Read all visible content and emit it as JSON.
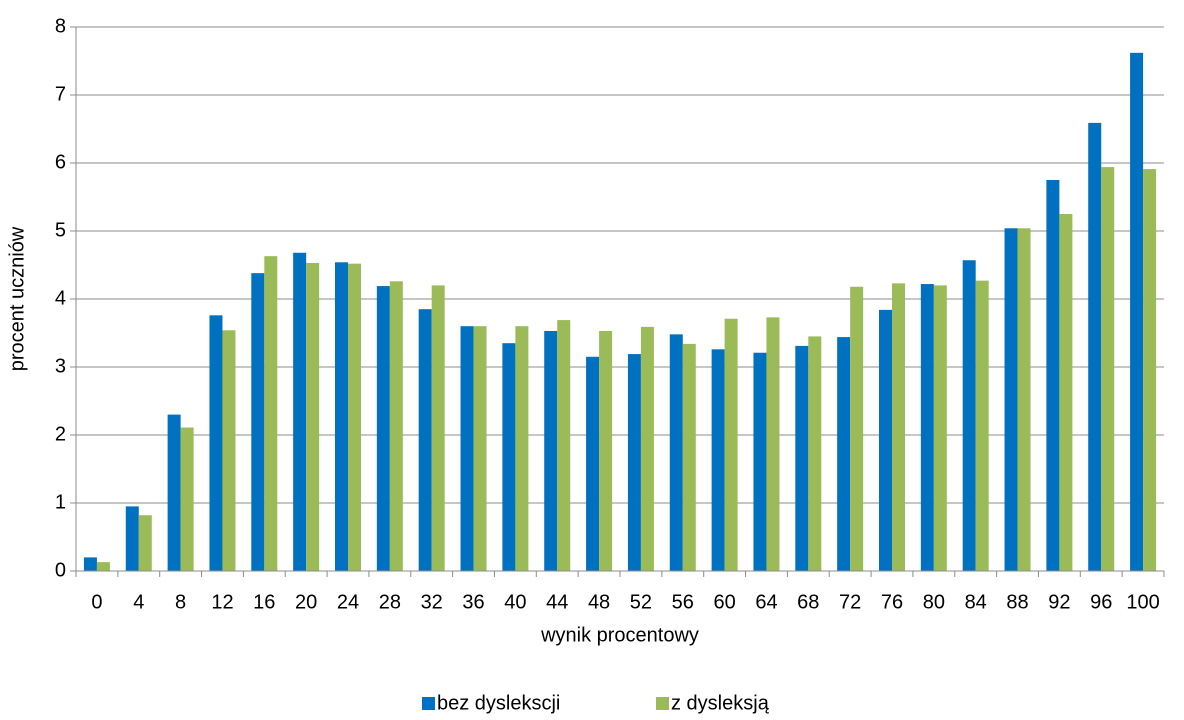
{
  "chart_data": {
    "type": "bar",
    "x_label": "wynik procentowy",
    "y_label": "procent uczniów",
    "categories": [
      "0",
      "4",
      "8",
      "12",
      "16",
      "20",
      "24",
      "28",
      "32",
      "36",
      "40",
      "44",
      "48",
      "52",
      "56",
      "60",
      "64",
      "68",
      "72",
      "76",
      "80",
      "84",
      "88",
      "92",
      "96",
      "100"
    ],
    "series": [
      {
        "name": "bez dyslekscji",
        "color": "#0070c0",
        "values": [
          0.2,
          0.95,
          2.3,
          3.76,
          4.38,
          4.68,
          4.54,
          4.19,
          3.85,
          3.6,
          3.35,
          3.53,
          3.15,
          3.19,
          3.48,
          3.26,
          3.21,
          3.31,
          3.44,
          3.84,
          4.22,
          4.57,
          5.04,
          5.75,
          6.59,
          7.62
        ]
      },
      {
        "name": "z dysleksją",
        "color": "#9bbb59",
        "values": [
          0.13,
          0.82,
          2.11,
          3.54,
          4.63,
          4.53,
          4.52,
          4.26,
          4.2,
          3.6,
          3.6,
          3.69,
          3.53,
          3.59,
          3.34,
          3.71,
          3.73,
          3.45,
          4.18,
          4.23,
          4.2,
          4.27,
          5.04,
          5.25,
          5.94,
          5.91
        ]
      }
    ],
    "ylim": [
      0,
      8
    ],
    "yticks": [
      0,
      1,
      2,
      3,
      4,
      5,
      6,
      7,
      8
    ],
    "grid": true,
    "legend": "bottom"
  }
}
